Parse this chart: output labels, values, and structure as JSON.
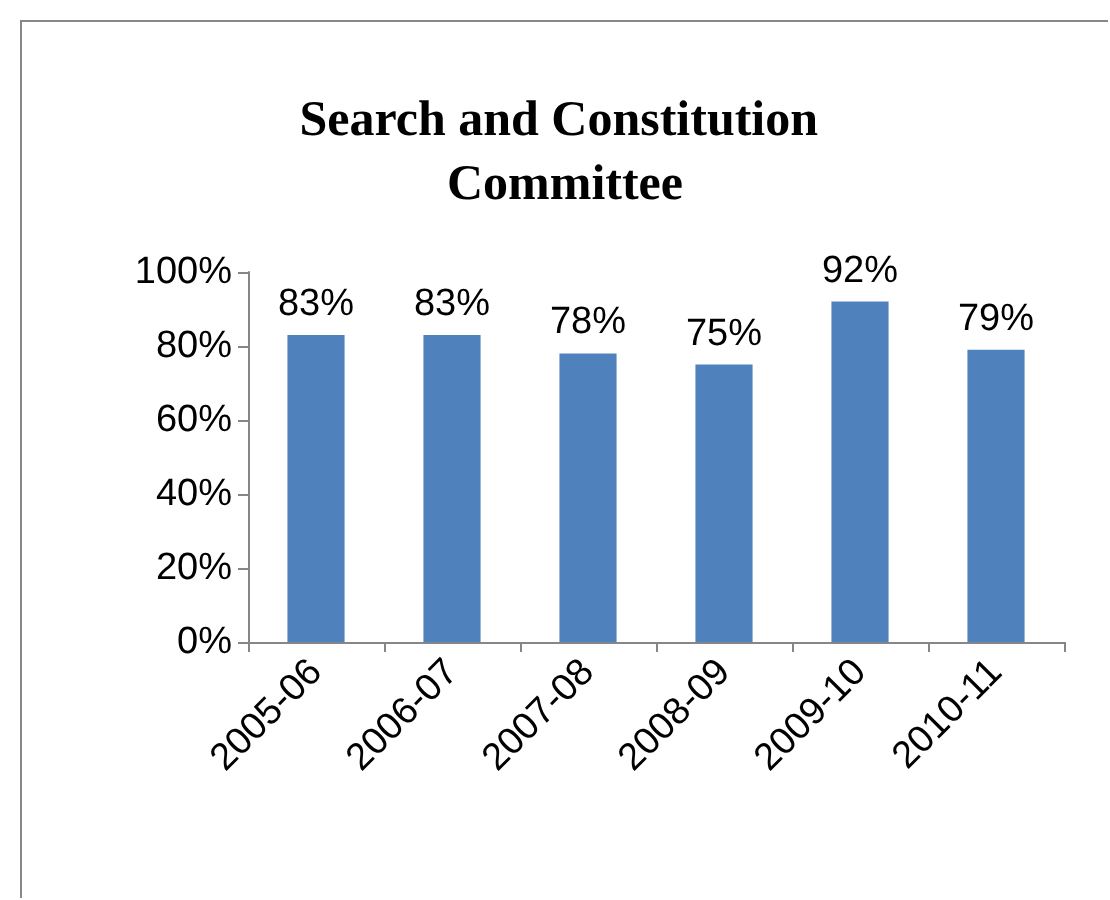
{
  "chart_data": {
    "type": "bar",
    "title": "Search and Constitution Committee",
    "categories": [
      "2005-06",
      "2006-07",
      "2007-08",
      "2008-09",
      "2009-10",
      "2010-11"
    ],
    "values": [
      83,
      83,
      78,
      75,
      92,
      79
    ],
    "value_labels": [
      "83%",
      "83%",
      "78%",
      "75%",
      "92%",
      "79%"
    ],
    "color": "#4f81bd",
    "ylim": [
      0,
      100
    ],
    "yticks": [
      {
        "value": 0,
        "label": "0%"
      },
      {
        "value": 20,
        "label": "20%"
      },
      {
        "value": 40,
        "label": "40%"
      },
      {
        "value": 60,
        "label": "60%"
      },
      {
        "value": 80,
        "label": "80%"
      },
      {
        "value": 100,
        "label": "100%"
      }
    ],
    "orientation": "vertical"
  }
}
